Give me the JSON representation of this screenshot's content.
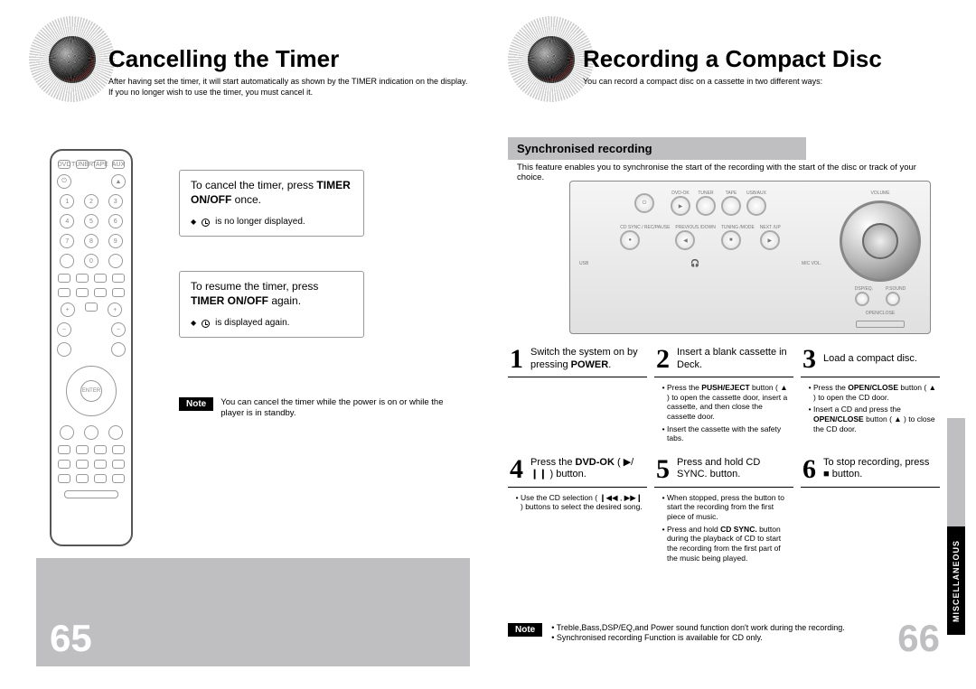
{
  "left": {
    "title": "Cancelling the Timer",
    "subtitle": "After having set the timer, it will start automatically as shown by the TIMER indication on the display.\nIf you no longer wish to use the timer, you must cancel it.",
    "box1": {
      "pre": "To cancel the timer, press ",
      "bold": "TIMER ON/OFF",
      "post": " once.",
      "tail": "is no longer displayed."
    },
    "box2": {
      "pre": "To resume the timer, press ",
      "bold": "TIMER ON/OFF",
      "post": " again.",
      "tail": "is displayed again."
    },
    "note_label": "Note",
    "note_text": "You can cancel the timer while the power is on or while the player is in standby.",
    "page_num": "65",
    "remote_enter": "ENTER",
    "remote_top_row": [
      "DVD",
      "TUNER",
      "TAPE",
      "AUX"
    ],
    "remote_digits": [
      "1",
      "2",
      "3",
      "4",
      "5",
      "6",
      "7",
      "8",
      "9",
      "0"
    ]
  },
  "right": {
    "title": "Recording a Compact Disc",
    "subtitle": "You can record a compact disc on a cassette in two different ways:",
    "sync_head": "Synchronised recording",
    "sync_desc": "This feature enables you to synchronise the start of the recording with the start of the disc or track of your choice.",
    "device_labels": {
      "volume": "VOLUME",
      "dvdok": "DVD-OK",
      "tuner": "TUNER",
      "tape": "TAPE",
      "usb": "USB/AUX",
      "cdsync": "CD SYNC / REC/PAUSE",
      "prev": "PREVIOUS /DOWN",
      "tuning": "TUNING /MODE",
      "next": "NEXT /UP",
      "dsp": "DSP/EQ.",
      "psound": "P.SOUND",
      "open": "OPEN/CLOSE",
      "usb_port": "USB",
      "mic": "MIC VOL."
    },
    "steps": [
      {
        "n": "1",
        "title_parts": [
          "Switch the system on by pressing ",
          "POWER",
          "."
        ],
        "body": []
      },
      {
        "n": "2",
        "title_parts": [
          "Insert a blank cassette in Deck.",
          "",
          ""
        ],
        "body": [
          "Press the PUSH/EJECT button ( ▲ ) to open the cassette door, insert a cassette, and then close the cassette door.",
          "Insert the cassette with the safety tabs."
        ]
      },
      {
        "n": "3",
        "title_parts": [
          "Load a compact disc.",
          "",
          ""
        ],
        "body": [
          "Press the OPEN/CLOSE button ( ▲ ) to open the CD door.",
          "Insert a CD and press the OPEN/CLOSE button ( ▲ ) to close the CD door."
        ]
      },
      {
        "n": "4",
        "title_parts": [
          "Press the ",
          "DVD-OK",
          " ( ▶/❙❙ ) button."
        ],
        "body": [
          "Use the CD selection ( ❙◀◀ , ▶▶❙ ) buttons to select the desired song."
        ]
      },
      {
        "n": "5",
        "title_parts": [
          "Press and hold CD SYNC. button.",
          "",
          ""
        ],
        "body": [
          "When stopped, press the button to start the recording from the first piece of music.",
          "Press and hold CD SYNC. button during the playback of CD to start the recording from the first part of the music being played."
        ]
      },
      {
        "n": "6",
        "title_parts": [
          "To stop recording, press  ■  button.",
          "",
          ""
        ],
        "body": []
      }
    ],
    "note_label": "Note",
    "notes": [
      "Treble,Bass,DSP/EQ,and Power sound function don't work during the recording.",
      "Synchronised recording Function is available for CD only."
    ],
    "page_num": "66",
    "misc_tab": "MISCELLANEOUS"
  },
  "colors": {
    "gray": "#bfbfc2",
    "black": "#000000"
  }
}
